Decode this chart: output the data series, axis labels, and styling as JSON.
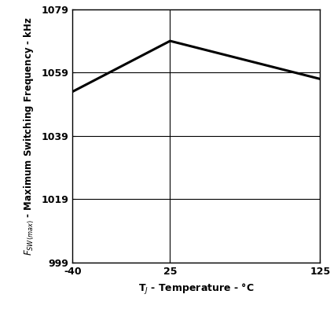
{
  "x_data": [
    -40,
    25,
    125
  ],
  "y_data": [
    1053,
    1069,
    1057
  ],
  "xlim": [
    -40,
    125
  ],
  "ylim": [
    999,
    1079
  ],
  "xticks": [
    -40,
    25,
    125
  ],
  "yticks": [
    999,
    1019,
    1039,
    1059,
    1079
  ],
  "xlabel": "T$_J$ - Temperature - °C",
  "line_color": "#000000",
  "line_width": 2.2,
  "grid_color": "#000000",
  "grid_linewidth": 0.8,
  "background_color": "#ffffff",
  "vline_x": 25,
  "fig_width": 4.2,
  "fig_height": 3.93,
  "dpi": 100
}
